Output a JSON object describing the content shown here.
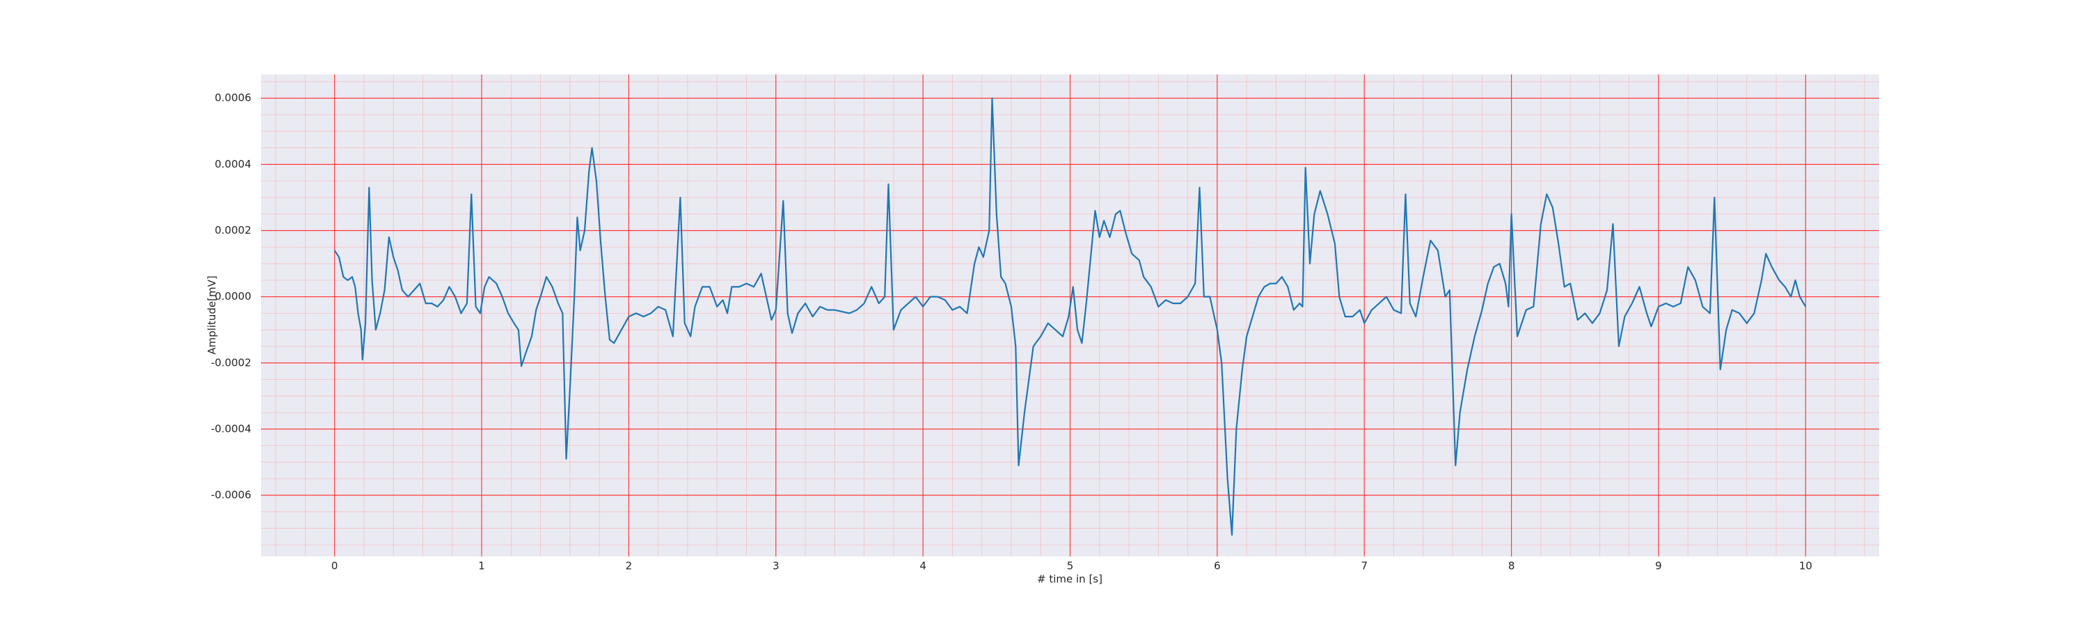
{
  "chart_data": {
    "type": "line",
    "xlabel": "# time in [s]",
    "ylabel": "Amplitude[mV]",
    "xlim": [
      -0.5,
      10.5
    ],
    "xticks": [
      0,
      1,
      2,
      3,
      4,
      5,
      6,
      7,
      8,
      9,
      10
    ],
    "ylim": [
      -0.000785,
      0.000672
    ],
    "yticks": [
      {
        "value": -0.0006,
        "label": "-0.0006"
      },
      {
        "value": -0.0004,
        "label": "-0.0004"
      },
      {
        "value": -0.0002,
        "label": "-0.0002"
      },
      {
        "value": 0,
        "label": "0.0000"
      },
      {
        "value": 0.0002,
        "label": "0.0002"
      },
      {
        "value": 0.0004,
        "label": "0.0004"
      },
      {
        "value": 0.0006,
        "label": "0.0006"
      }
    ],
    "grid": true,
    "color": "#1f77b4",
    "x": [
      0,
      0.03,
      0.06,
      0.09,
      0.12,
      0.14,
      0.16,
      0.18,
      0.19,
      0.21,
      0.235,
      0.255,
      0.28,
      0.31,
      0.34,
      0.37,
      0.4,
      0.43,
      0.46,
      0.5,
      0.54,
      0.58,
      0.62,
      0.66,
      0.7,
      0.74,
      0.78,
      0.82,
      0.86,
      0.9,
      0.93,
      0.96,
      0.99,
      1.02,
      1.05,
      1.1,
      1.14,
      1.18,
      1.22,
      1.25,
      1.27,
      1.3,
      1.34,
      1.37,
      1.4,
      1.44,
      1.48,
      1.52,
      1.55,
      1.575,
      1.6,
      1.63,
      1.65,
      1.67,
      1.7,
      1.73,
      1.75,
      1.78,
      1.81,
      1.84,
      1.87,
      1.9,
      1.95,
      2.0,
      2.05,
      2.1,
      2.15,
      2.2,
      2.25,
      2.3,
      2.35,
      2.38,
      2.42,
      2.45,
      2.5,
      2.55,
      2.6,
      2.64,
      2.67,
      2.7,
      2.75,
      2.8,
      2.85,
      2.9,
      2.93,
      2.97,
      3.0,
      3.05,
      3.08,
      3.11,
      3.15,
      3.2,
      3.25,
      3.3,
      3.35,
      3.4,
      3.5,
      3.55,
      3.6,
      3.65,
      3.7,
      3.74,
      3.765,
      3.8,
      3.85,
      3.9,
      3.95,
      4.0,
      4.05,
      4.1,
      4.15,
      4.2,
      4.25,
      4.3,
      4.35,
      4.38,
      4.41,
      4.43,
      4.45,
      4.47,
      4.5,
      4.53,
      4.56,
      4.6,
      4.63,
      4.65,
      4.69,
      4.72,
      4.75,
      4.8,
      4.85,
      4.9,
      4.95,
      4.99,
      5.02,
      5.05,
      5.08,
      5.11,
      5.17,
      5.2,
      5.23,
      5.27,
      5.31,
      5.34,
      5.38,
      5.42,
      5.47,
      5.5,
      5.55,
      5.6,
      5.65,
      5.7,
      5.75,
      5.8,
      5.85,
      5.88,
      5.91,
      5.95,
      6.0,
      6.03,
      6.07,
      6.1,
      6.13,
      6.17,
      6.2,
      6.24,
      6.28,
      6.32,
      6.36,
      6.4,
      6.44,
      6.48,
      6.52,
      6.56,
      6.58,
      6.6,
      6.63,
      6.66,
      6.7,
      6.75,
      6.8,
      6.83,
      6.87,
      6.92,
      6.97,
      7.0,
      7.05,
      7.1,
      7.15,
      7.2,
      7.25,
      7.28,
      7.31,
      7.35,
      7.4,
      7.45,
      7.5,
      7.55,
      7.58,
      7.62,
      7.65,
      7.7,
      7.75,
      7.8,
      7.84,
      7.88,
      7.92,
      7.96,
      7.98,
      8.0,
      8.04,
      8.1,
      8.15,
      8.2,
      8.24,
      8.28,
      8.32,
      8.36,
      8.4,
      8.45,
      8.5,
      8.55,
      8.6,
      8.65,
      8.69,
      8.73,
      8.77,
      8.82,
      8.87,
      8.92,
      8.95,
      9.0,
      9.05,
      9.1,
      9.15,
      9.2,
      9.25,
      9.3,
      9.35,
      9.38,
      9.42,
      9.46,
      9.5,
      9.55,
      9.6,
      9.65,
      9.7,
      9.73,
      9.77,
      9.82,
      9.86,
      9.9,
      9.93,
      9.96,
      10.0
    ],
    "values": [
      0.00014,
      0.00012,
      6e-05,
      5e-05,
      6e-05,
      3e-05,
      -5e-05,
      -0.0001,
      -0.00019,
      -8e-05,
      0.00033,
      5e-05,
      -0.0001,
      -5e-05,
      2e-05,
      0.00018,
      0.00012,
      8e-05,
      2e-05,
      0.0,
      2e-05,
      4e-05,
      -2e-05,
      -2e-05,
      -3e-05,
      -1e-05,
      3e-05,
      0.0,
      -5e-05,
      -2e-05,
      0.00031,
      -3e-05,
      -5e-05,
      3e-05,
      6e-05,
      4e-05,
      0.0,
      -5e-05,
      -8e-05,
      -0.0001,
      -0.00021,
      -0.00017,
      -0.00012,
      -4e-05,
      0.0,
      6e-05,
      3e-05,
      -2e-05,
      -5e-05,
      -0.00049,
      -0.00028,
      0.0,
      0.00024,
      0.00014,
      0.0002,
      0.00038,
      0.00045,
      0.00035,
      0.00016,
      0.0,
      -0.00013,
      -0.00014,
      -0.0001,
      -6e-05,
      -5e-05,
      -6e-05,
      -5e-05,
      -3e-05,
      -4e-05,
      -0.00012,
      0.0003,
      -8e-05,
      -0.00012,
      -3e-05,
      3e-05,
      3e-05,
      -3e-05,
      -1e-05,
      -5e-05,
      3e-05,
      3e-05,
      4e-05,
      3e-05,
      7e-05,
      1e-05,
      -7e-05,
      -4e-05,
      0.00029,
      -5e-05,
      -0.00011,
      -5e-05,
      -2e-05,
      -6e-05,
      -3e-05,
      -4e-05,
      -4e-05,
      -5e-05,
      -4e-05,
      -2e-05,
      3e-05,
      -2e-05,
      0.0,
      0.00034,
      -0.0001,
      -4e-05,
      -2e-05,
      0.0,
      -3e-05,
      0.0,
      0.0,
      -1e-05,
      -4e-05,
      -3e-05,
      -5e-05,
      0.0001,
      0.00015,
      0.00012,
      0.00016,
      0.0002,
      0.0006,
      0.00025,
      6e-05,
      4e-05,
      -3e-05,
      -0.00015,
      -0.00051,
      -0.00035,
      -0.00025,
      -0.00015,
      -0.00012,
      -8e-05,
      -0.0001,
      -0.00012,
      -6e-05,
      3e-05,
      -0.0001,
      -0.00014,
      -2e-05,
      0.00026,
      0.00018,
      0.00023,
      0.00018,
      0.00025,
      0.00026,
      0.00019,
      0.00013,
      0.00011,
      6e-05,
      3e-05,
      -3e-05,
      -1e-05,
      -2e-05,
      -2e-05,
      0.0,
      4e-05,
      0.00033,
      0.0,
      0.0,
      -0.0001,
      -0.0002,
      -0.00055,
      -0.00072,
      -0.0004,
      -0.00022,
      -0.00012,
      -6e-05,
      0.0,
      3e-05,
      4e-05,
      4e-05,
      6e-05,
      3e-05,
      -4e-05,
      -2e-05,
      -3e-05,
      0.00039,
      0.0001,
      0.00025,
      0.00032,
      0.00025,
      0.00016,
      0.0,
      -6e-05,
      -6e-05,
      -4e-05,
      -8e-05,
      -4e-05,
      -2e-05,
      0.0,
      -4e-05,
      -5e-05,
      0.00031,
      -2e-05,
      -6e-05,
      6e-05,
      0.00017,
      0.00014,
      0.0,
      2e-05,
      -0.00051,
      -0.00035,
      -0.00022,
      -0.00012,
      -4e-05,
      4e-05,
      9e-05,
      0.0001,
      4e-05,
      -3e-05,
      0.00025,
      -0.00012,
      -4e-05,
      -3e-05,
      0.00022,
      0.00031,
      0.00027,
      0.00016,
      3e-05,
      4e-05,
      -7e-05,
      -5e-05,
      -8e-05,
      -5e-05,
      2e-05,
      0.00022,
      -0.00015,
      -6e-05,
      -2e-05,
      3e-05,
      -5e-05,
      -9e-05,
      -3e-05,
      -2e-05,
      -3e-05,
      -2e-05,
      9e-05,
      5e-05,
      -3e-05,
      -5e-05,
      0.0003,
      -0.00022,
      -0.0001,
      -4e-05,
      -5e-05,
      -8e-05,
      -5e-05,
      5e-05,
      0.00013,
      9e-05,
      5e-05,
      3e-05,
      0.0,
      5e-05,
      0.0,
      -3e-05
    ]
  }
}
